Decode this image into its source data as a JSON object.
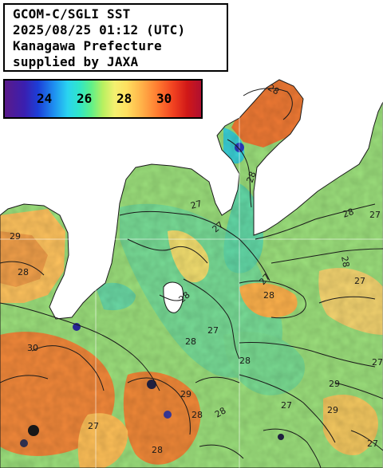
{
  "info": {
    "line1": "GCOM-C/SGLI SST",
    "line2": "2025/08/25 01:12 (UTC)",
    "line3": "Kanagawa Prefecture",
    "line4": "supplied by JAXA"
  },
  "colorbar": {
    "ticks": [
      "24",
      "26",
      "28",
      "30"
    ]
  },
  "contour_labels": [
    "27",
    "27",
    "28",
    "28",
    "27",
    "28",
    "27",
    "29",
    "28",
    "28",
    "27",
    "28",
    "27",
    "28",
    "28",
    "29",
    "28",
    "27",
    "27",
    "28",
    "27",
    "30",
    "28",
    "28",
    "29",
    "27",
    "29"
  ],
  "colors": {
    "land": "#ffffff",
    "sea_base": "#9ce07c",
    "sea_warm": "#ffbf5a",
    "sea_hot": "#f2883a",
    "sea_cool": "#64d8a0",
    "sea_cyan": "#5ae0d0",
    "contour": "#1a1a1a"
  }
}
